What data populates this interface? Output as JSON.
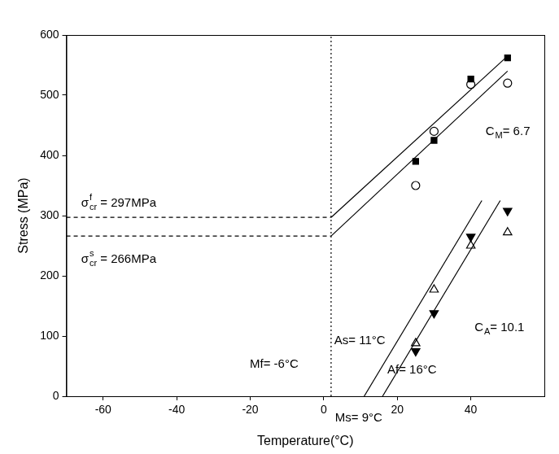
{
  "chart_data": {
    "type": "scatter",
    "x_label": "Temperature(°C)",
    "y_label": "Stress (MPa)",
    "xlim": [
      -70,
      60
    ],
    "xticks": [
      -60,
      -40,
      -20,
      0,
      20,
      40
    ],
    "ylim": [
      0,
      600
    ],
    "yticks": [
      0,
      100,
      200,
      300,
      400,
      500,
      600
    ],
    "grid": false,
    "series": [
      {
        "type": "line",
        "line_style": "dotted",
        "color": "#000000",
        "x": [
          2,
          2
        ],
        "values": [
          0,
          600
        ]
      },
      {
        "type": "line",
        "line_style": "dashed",
        "color": "#000000",
        "x": [
          -70,
          2
        ],
        "values": [
          297,
          297
        ]
      },
      {
        "type": "line",
        "line_style": "dashed",
        "color": "#000000",
        "x": [
          -70,
          2
        ],
        "values": [
          266,
          266
        ]
      },
      {
        "type": "line",
        "line_style": "solid",
        "color": "#000000",
        "x": [
          2,
          50
        ],
        "values": [
          297,
          565
        ]
      },
      {
        "type": "line",
        "line_style": "solid",
        "color": "#000000",
        "x": [
          2,
          50
        ],
        "values": [
          266,
          540
        ]
      },
      {
        "type": "line",
        "line_style": "solid",
        "color": "#000000",
        "x": [
          11,
          43
        ],
        "values": [
          0,
          325
        ]
      },
      {
        "type": "line",
        "line_style": "solid",
        "color": "#000000",
        "x": [
          16,
          48
        ],
        "values": [
          0,
          325
        ]
      },
      {
        "type": "scatter",
        "marker": "square",
        "color": "#000000",
        "x": [
          25,
          30,
          40,
          50
        ],
        "values": [
          390,
          425,
          527,
          562
        ]
      },
      {
        "type": "scatter",
        "marker": "circle_open",
        "color": "#000000",
        "x": [
          25,
          30,
          40,
          50
        ],
        "values": [
          350,
          440,
          518,
          520
        ]
      },
      {
        "type": "scatter",
        "marker": "triangle_down",
        "color": "#000000",
        "x": [
          25,
          30,
          40,
          50
        ],
        "values": [
          75,
          138,
          265,
          308
        ]
      },
      {
        "type": "scatter",
        "marker": "triangle_open",
        "color": "#000000",
        "x": [
          25,
          30,
          40,
          50
        ],
        "values": [
          88,
          177,
          250,
          272
        ]
      }
    ],
    "annotations": [
      {
        "base": "σ",
        "sup": "f",
        "sub": "cr",
        "text": " = 297MPa"
      },
      {
        "base": "σ",
        "sup": "s",
        "sub": "cr",
        "text": " = 266MPa"
      },
      {
        "base": "C",
        "sub": "M",
        "text": "= 6.7"
      },
      {
        "base": "C",
        "sub": "A",
        "text": "= 10.1"
      },
      {
        "text": "As= 11°C"
      },
      {
        "text": "Af= 16°C"
      },
      {
        "text": "Mf= -6°C"
      },
      {
        "text": "Ms= 9°C"
      }
    ]
  }
}
